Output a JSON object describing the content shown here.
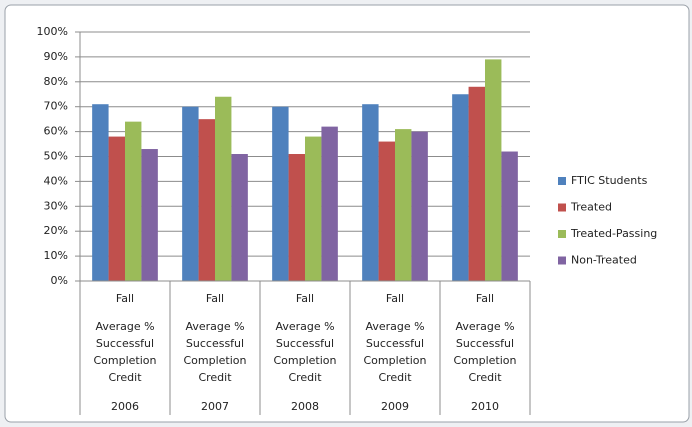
{
  "chart_data": {
    "type": "bar",
    "categories": [
      {
        "term": "Fall",
        "measure": [
          "Average %",
          "Successful",
          "Completion",
          "Credit"
        ],
        "year": "2006"
      },
      {
        "term": "Fall",
        "measure": [
          "Average %",
          "Successful",
          "Completion",
          "Credit"
        ],
        "year": "2007"
      },
      {
        "term": "Fall",
        "measure": [
          "Average %",
          "Successful",
          "Completion",
          "Credit"
        ],
        "year": "2008"
      },
      {
        "term": "Fall",
        "measure": [
          "Average %",
          "Successful",
          "Completion",
          "Credit"
        ],
        "year": "2009"
      },
      {
        "term": "Fall",
        "measure": [
          "Average %",
          "Successful",
          "Completion",
          "Credit"
        ],
        "year": "2010"
      }
    ],
    "series": [
      {
        "name": "FTIC Students",
        "color": "#4f81bd",
        "values": [
          71,
          70,
          70,
          71,
          75
        ]
      },
      {
        "name": "Treated",
        "color": "#c0504d",
        "values": [
          58,
          65,
          51,
          56,
          78
        ]
      },
      {
        "name": "Treated-Passing",
        "color": "#9bbb59",
        "values": [
          64,
          74,
          58,
          61,
          89
        ]
      },
      {
        "name": "Non-Treated",
        "color": "#8064a2",
        "values": [
          53,
          51,
          62,
          60,
          52
        ]
      }
    ],
    "ylim": [
      0,
      100
    ],
    "yticks": [
      {
        "value": 0,
        "label": "0%"
      },
      {
        "value": 10,
        "label": "10%"
      },
      {
        "value": 20,
        "label": "20%"
      },
      {
        "value": 30,
        "label": "30%"
      },
      {
        "value": 40,
        "label": "40%"
      },
      {
        "value": 50,
        "label": "50%"
      },
      {
        "value": 60,
        "label": "60%"
      },
      {
        "value": 70,
        "label": "70%"
      },
      {
        "value": 80,
        "label": "80%"
      },
      {
        "value": 90,
        "label": "90%"
      },
      {
        "value": 100,
        "label": "100%"
      }
    ],
    "grid": true,
    "legend": "right"
  }
}
